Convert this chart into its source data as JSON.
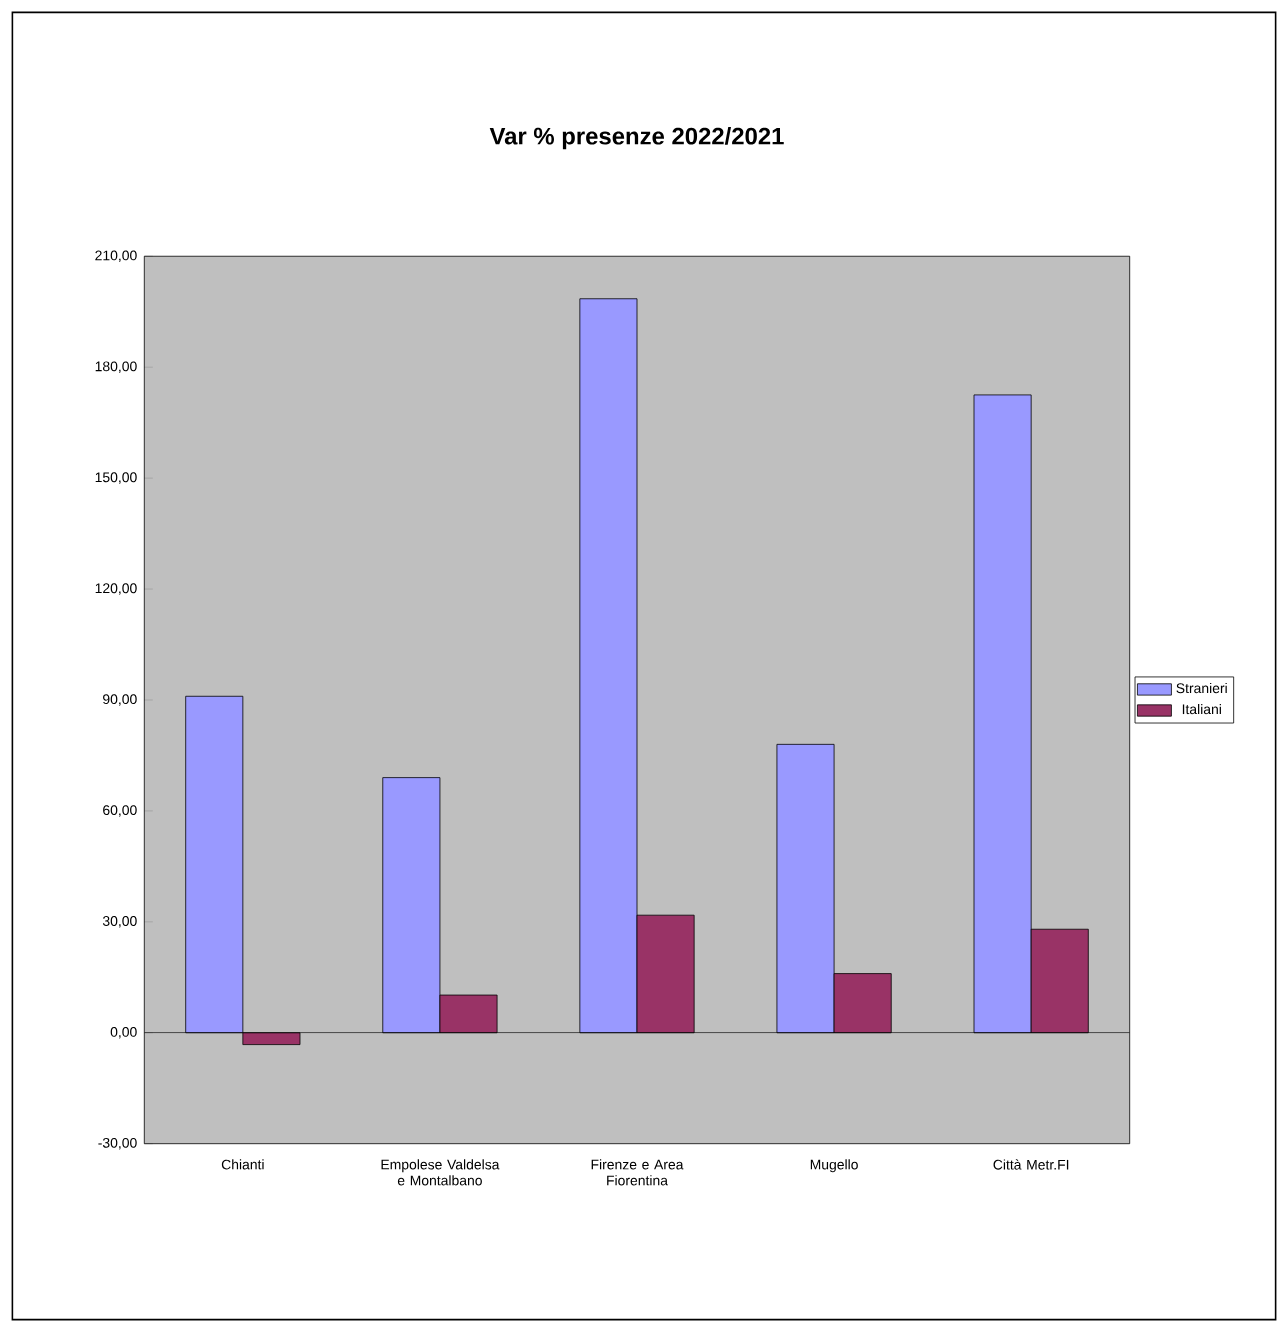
{
  "chart_data": {
    "type": "bar",
    "title": "Var % presenze 2022/2021",
    "categories": [
      "Chianti",
      "Empolese Valdelsa e Montalbano",
      "Firenze e Area Fiorentina",
      "Mugello",
      "Città Metr.FI"
    ],
    "series": [
      {
        "name": "Stranieri",
        "color": "#9999ff",
        "values": [
          91,
          69,
          198.5,
          78,
          172.5
        ]
      },
      {
        "name": "Italiani",
        "color": "#993366",
        "values": [
          -3.2,
          10.2,
          31.8,
          16,
          28
        ]
      }
    ],
    "ylim": [
      -30,
      210
    ],
    "yticks": [
      {
        "value": -30,
        "label": "-30,00"
      },
      {
        "value": 0,
        "label": "0,00"
      },
      {
        "value": 30,
        "label": "30,00"
      },
      {
        "value": 60,
        "label": "60,00"
      },
      {
        "value": 90,
        "label": "90,00"
      },
      {
        "value": 120,
        "label": "120,00"
      },
      {
        "value": 150,
        "label": "150,00"
      },
      {
        "value": 180,
        "label": "180,00"
      },
      {
        "value": 210,
        "label": "210,00"
      }
    ],
    "ref_lines": [
      {
        "axis": "y",
        "value": 0,
        "color": "#000000"
      }
    ],
    "legend": "right",
    "grid": false
  }
}
